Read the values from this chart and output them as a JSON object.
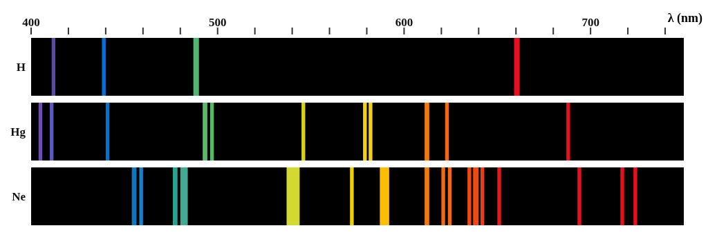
{
  "chart_data": {
    "type": "bar",
    "orientation": "horizontal",
    "xlabel": "λ (nm)",
    "categories": [
      "H",
      "Hg",
      "Ne"
    ],
    "xlim": [
      400,
      750
    ],
    "xticks": [
      400,
      {
        "value": 420,
        "label": null
      },
      {
        "value": 440,
        "label": null
      },
      {
        "value": 460,
        "label": null
      },
      {
        "value": 480,
        "label": null
      },
      500,
      {
        "value": 520,
        "label": null
      },
      {
        "value": 540,
        "label": null
      },
      {
        "value": 560,
        "label": null
      },
      {
        "value": 580,
        "label": null
      },
      600,
      {
        "value": 620,
        "label": null
      },
      {
        "value": 640,
        "label": null
      },
      {
        "value": 660,
        "label": null
      },
      {
        "value": 680,
        "label": null
      },
      700,
      {
        "value": 720,
        "label": null
      },
      {
        "value": 740,
        "label": null
      }
    ],
    "series": [
      {
        "color": "#5a4aa8",
        "base": [
          411,
          null,
          null
        ],
        "values": [
          2,
          null,
          null
        ]
      },
      {
        "color": "#0a6fd0",
        "base": [
          438,
          null,
          null
        ],
        "values": [
          2,
          null,
          null
        ]
      },
      {
        "color": "#52b373",
        "base": [
          487,
          null,
          null
        ],
        "values": [
          3,
          null,
          null
        ]
      },
      {
        "color": "#e8101c",
        "base": [
          659,
          null,
          null
        ],
        "values": [
          3,
          null,
          null
        ]
      },
      {
        "color": "#6a4fb0",
        "base": [
          null,
          404,
          null
        ],
        "values": [
          null,
          2,
          null
        ]
      },
      {
        "color": "#5a5ab8",
        "base": [
          null,
          410,
          null
        ],
        "values": [
          null,
          2,
          null
        ]
      },
      {
        "color": "#0a70d0",
        "base": [
          null,
          440,
          null
        ],
        "values": [
          null,
          2,
          null
        ]
      },
      {
        "color": "#5ab86a",
        "base": [
          null,
          492,
          null
        ],
        "values": [
          null,
          2.5,
          null
        ]
      },
      {
        "color": "#5ab86a",
        "base": [
          null,
          496,
          null
        ],
        "values": [
          null,
          2,
          null
        ]
      },
      {
        "color": "#d4d21e",
        "base": [
          null,
          545,
          null
        ],
        "values": [
          null,
          2,
          null
        ]
      },
      {
        "color": "#f5d010",
        "base": [
          null,
          578,
          null
        ],
        "values": [
          null,
          2,
          null
        ]
      },
      {
        "color": "#f5d010",
        "base": [
          null,
          581,
          null
        ],
        "values": [
          null,
          2,
          null
        ]
      },
      {
        "color": "#f07b0c",
        "base": [
          null,
          611,
          null
        ],
        "values": [
          null,
          2.5,
          null
        ]
      },
      {
        "color": "#ee6a10",
        "base": [
          null,
          622,
          null
        ],
        "values": [
          null,
          2,
          null
        ]
      },
      {
        "color": "#e8101c",
        "base": [
          null,
          687,
          null
        ],
        "values": [
          null,
          2,
          null
        ]
      },
      {
        "color": "#0d78c0",
        "base": [
          null,
          null,
          454
        ],
        "values": [
          null,
          null,
          2.5
        ]
      },
      {
        "color": "#1a80c8",
        "base": [
          null,
          null,
          458
        ],
        "values": [
          null,
          null,
          2
        ]
      },
      {
        "color": "#2aa090",
        "base": [
          null,
          null,
          476
        ],
        "values": [
          null,
          null,
          2.5
        ]
      },
      {
        "color": "#45a890",
        "base": [
          null,
          null,
          480
        ],
        "values": [
          null,
          null,
          4
        ]
      },
      {
        "color": "#d3d930",
        "base": [
          null,
          null,
          537
        ],
        "values": [
          null,
          null,
          7
        ]
      },
      {
        "color": "#f0d000",
        "base": [
          null,
          null,
          571
        ],
        "values": [
          null,
          null,
          2
        ]
      },
      {
        "color": "#fbbf00",
        "base": [
          null,
          null,
          587
        ],
        "values": [
          null,
          null,
          5
        ]
      },
      {
        "color": "#f07a0c",
        "base": [
          null,
          null,
          611
        ],
        "values": [
          null,
          null,
          2.5
        ]
      },
      {
        "color": "#ef6a12",
        "base": [
          null,
          null,
          620
        ],
        "values": [
          null,
          null,
          2
        ]
      },
      {
        "color": "#ef6a12",
        "base": [
          null,
          null,
          623.5
        ],
        "values": [
          null,
          null,
          2
        ]
      },
      {
        "color": "#ef4a14",
        "base": [
          null,
          null,
          634
        ],
        "values": [
          null,
          null,
          2
        ]
      },
      {
        "color": "#ef4a14",
        "base": [
          null,
          null,
          637
        ],
        "values": [
          null,
          null,
          3
        ]
      },
      {
        "color": "#ef3a14",
        "base": [
          null,
          null,
          641
        ],
        "values": [
          null,
          null,
          2
        ]
      },
      {
        "color": "#e81818",
        "base": [
          null,
          null,
          650
        ],
        "values": [
          null,
          null,
          2
        ]
      },
      {
        "color": "#e8101c",
        "base": [
          null,
          null,
          693
        ],
        "values": [
          null,
          null,
          2
        ]
      },
      {
        "color": "#e8101c",
        "base": [
          null,
          null,
          716
        ],
        "values": [
          null,
          null,
          2
        ]
      },
      {
        "color": "#e8101c",
        "base": [
          null,
          null,
          723
        ],
        "values": [
          null,
          null,
          2
        ]
      }
    ]
  }
}
